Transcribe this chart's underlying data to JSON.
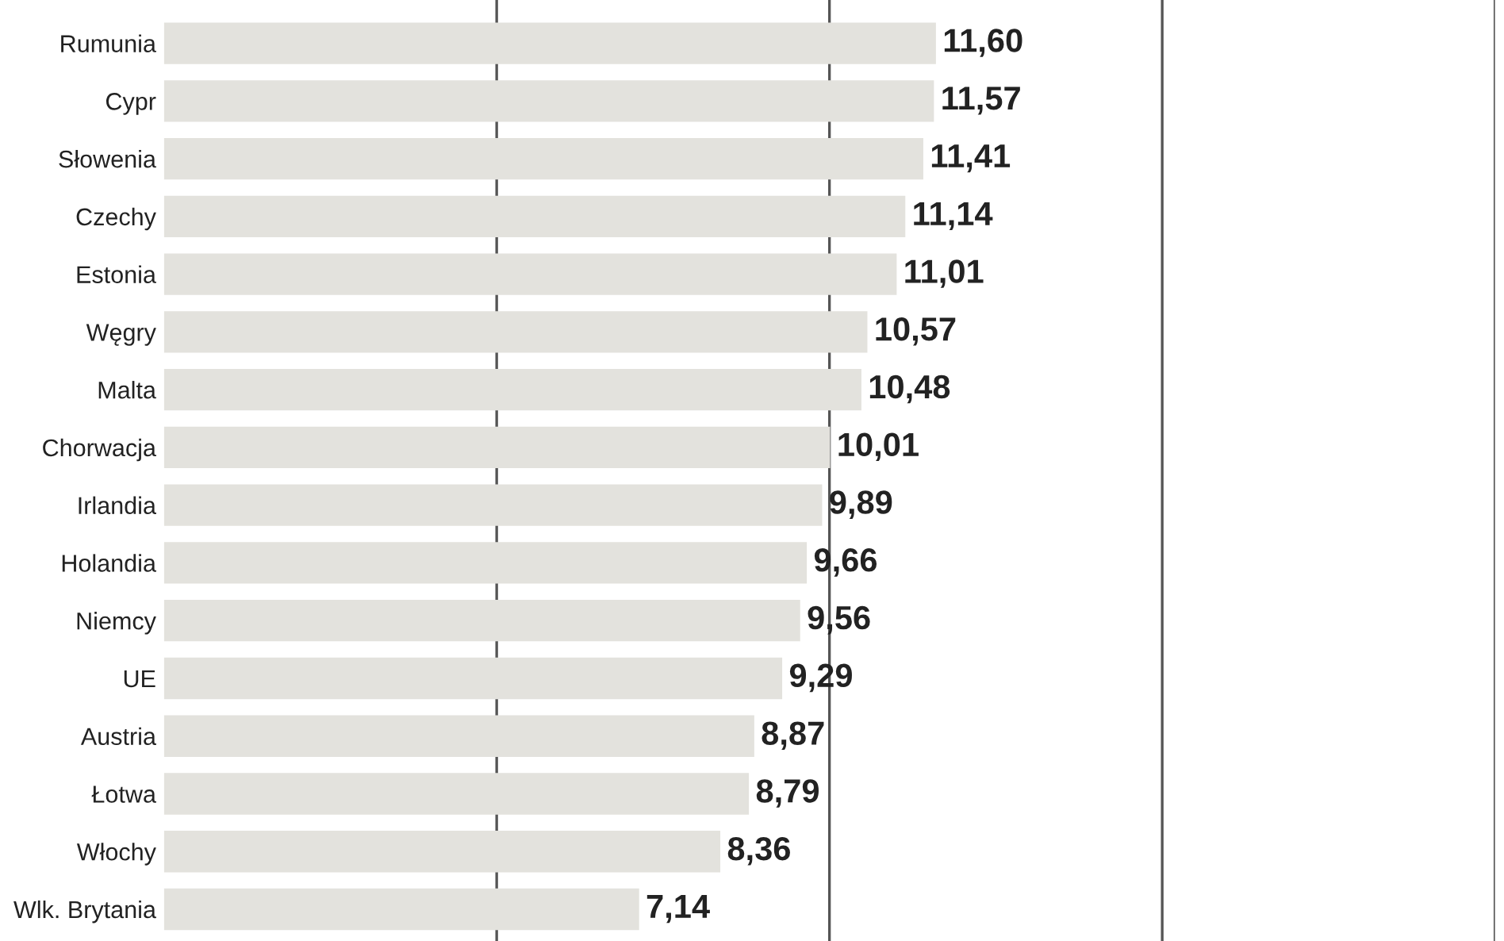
{
  "chart_data": {
    "type": "bar",
    "orientation": "horizontal",
    "categories": [
      "Rumunia",
      "Cypr",
      "Słowenia",
      "Czechy",
      "Estonia",
      "Węgry",
      "Malta",
      "Chorwacja",
      "Irlandia",
      "Holandia",
      "Niemcy",
      "UE",
      "Austria",
      "Łotwa",
      "Włochy",
      "Wlk. Brytania"
    ],
    "values": [
      11.6,
      11.57,
      11.41,
      11.14,
      11.01,
      10.57,
      10.48,
      10.01,
      9.89,
      9.66,
      9.56,
      9.29,
      8.87,
      8.79,
      8.36,
      7.14
    ],
    "value_labels": [
      "11,60",
      "11,57",
      "11,41",
      "11,14",
      "11,01",
      "10,57",
      "10,48",
      "10,01",
      "9,89",
      "9,66",
      "9,56",
      "9,29",
      "8,87",
      "8,79",
      "8,36",
      "7,14"
    ],
    "color": "#e3e2dd",
    "xlim": [
      0,
      20
    ],
    "xticks": [
      {
        "value": 5,
        "label": null
      },
      {
        "value": 10,
        "label": null
      },
      {
        "value": 15,
        "label": null
      },
      {
        "value": 20,
        "label": null
      }
    ],
    "grid": "x",
    "tick_labels": "y"
  }
}
